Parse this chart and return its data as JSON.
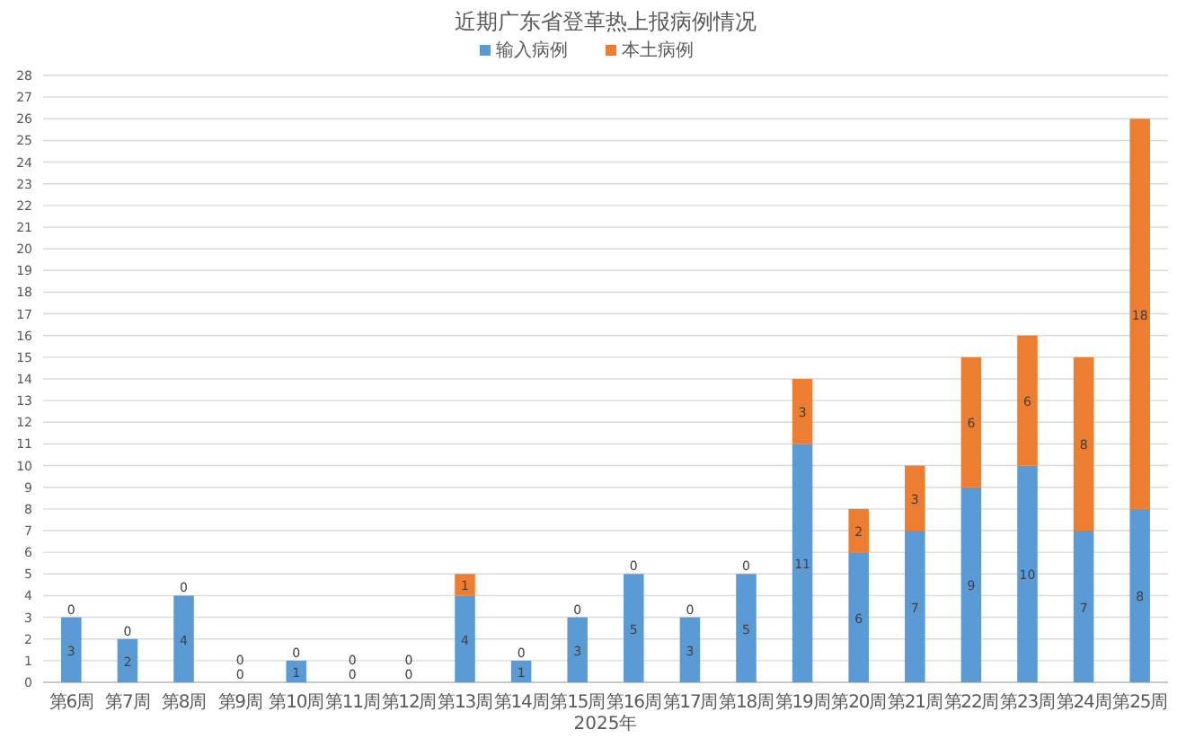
{
  "chart_data": {
    "type": "bar",
    "stacked": true,
    "title": "近期广东省登革热上报病例情况",
    "xlabel": "2025年",
    "categories": [
      "第6周",
      "第7周",
      "第8周",
      "第9周",
      "第10周",
      "第11周",
      "第12周",
      "第13周",
      "第14周",
      "第15周",
      "第16周",
      "第17周",
      "第18周",
      "第19周",
      "第20周",
      "第21周",
      "第22周",
      "第23周",
      "第24周",
      "第25周"
    ],
    "series": [
      {
        "name": "输入病例",
        "color": "#5b9bd5",
        "values": [
          3,
          2,
          4,
          0,
          1,
          0,
          0,
          4,
          1,
          3,
          5,
          3,
          5,
          11,
          6,
          7,
          9,
          10,
          7,
          8
        ]
      },
      {
        "name": "本土病例",
        "color": "#ed7d31",
        "values": [
          0,
          0,
          0,
          0,
          0,
          0,
          0,
          1,
          0,
          0,
          0,
          0,
          0,
          3,
          2,
          3,
          6,
          6,
          8,
          18
        ]
      }
    ],
    "ylim": [
      0,
      28
    ],
    "yticks": [
      0,
      1,
      2,
      3,
      4,
      5,
      6,
      7,
      8,
      9,
      10,
      11,
      12,
      13,
      14,
      15,
      16,
      17,
      18,
      19,
      20,
      21,
      22,
      23,
      24,
      25,
      26,
      27,
      28
    ],
    "grid": "y",
    "legend": "top",
    "data_labels": true
  }
}
